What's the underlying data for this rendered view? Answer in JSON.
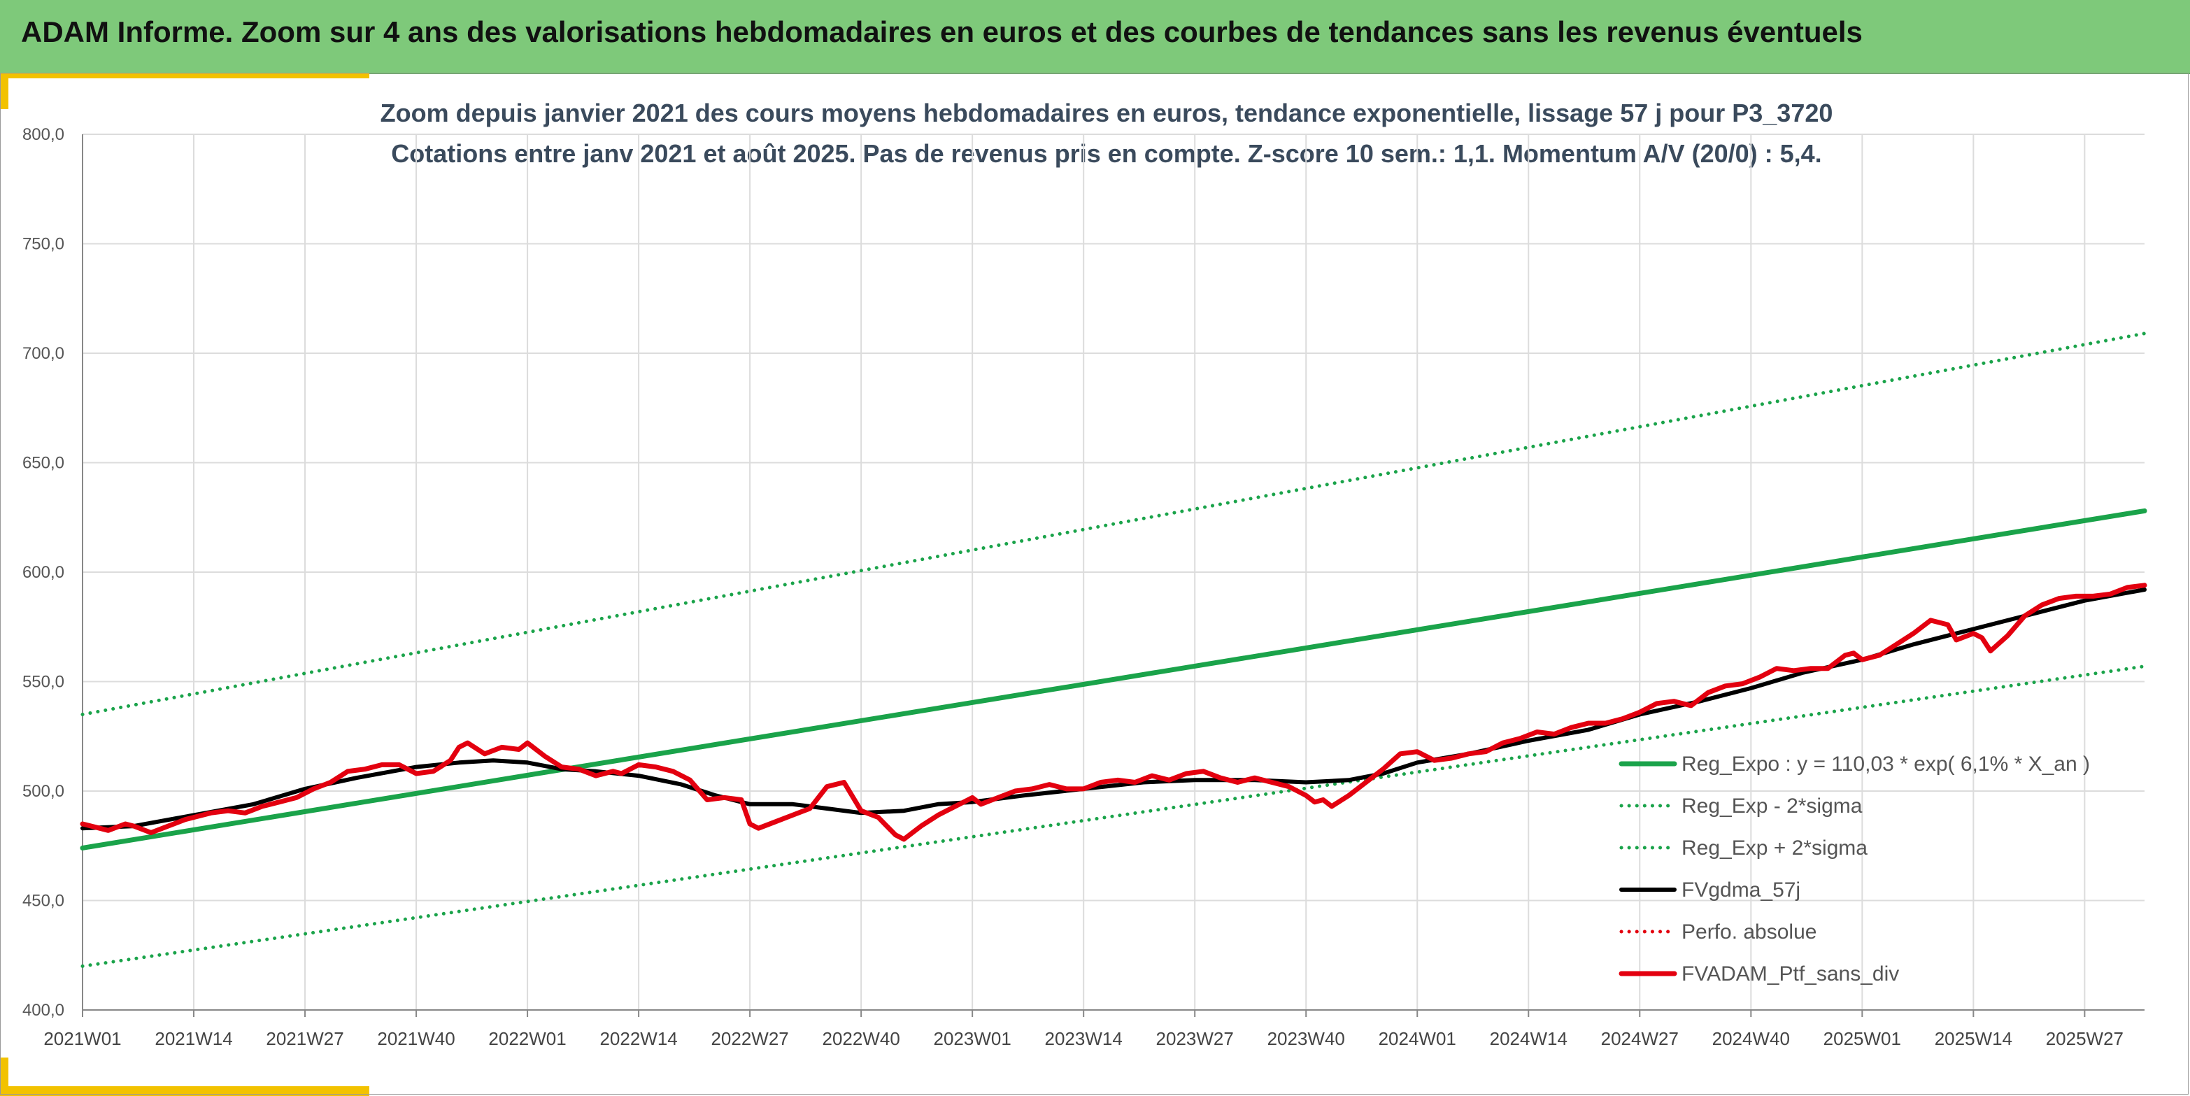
{
  "header": {
    "title": "ADAM Informe. Zoom sur 4 ans des valorisations hebdomadaires en euros et des courbes de tendances sans les revenus éventuels"
  },
  "colors": {
    "header_bg": "#7ec97a",
    "accent": "#f2c200",
    "trend_green": "#1aa34a",
    "smooth_black": "#000000",
    "price_red": "#e3000f"
  },
  "chart_data": {
    "type": "line",
    "title_line1": "Zoom depuis janvier 2021 des cours moyens hebdomadaires en euros, tendance exponentielle, lissage 57 j pour P3_3720",
    "title_line2": "Cotations entre janv 2021 et août 2025. Pas de revenus pris en compte. Z-score 10 sem.: 1,1. Momentum A/V (20/0) : 5,4.",
    "ylim": [
      400,
      800
    ],
    "yticks": [
      "400,0",
      "450,0",
      "500,0",
      "550,0",
      "600,0",
      "650,0",
      "700,0",
      "750,0",
      "800,0"
    ],
    "xlim": [
      0,
      241
    ],
    "xticks": [
      {
        "label": "2021W01",
        "x": 0
      },
      {
        "label": "2021W14",
        "x": 13
      },
      {
        "label": "2021W27",
        "x": 26
      },
      {
        "label": "2021W40",
        "x": 39
      },
      {
        "label": "2022W01",
        "x": 52
      },
      {
        "label": "2022W14",
        "x": 65
      },
      {
        "label": "2022W27",
        "x": 78
      },
      {
        "label": "2022W40",
        "x": 91
      },
      {
        "label": "2023W01",
        "x": 104
      },
      {
        "label": "2023W14",
        "x": 117
      },
      {
        "label": "2023W27",
        "x": 130
      },
      {
        "label": "2023W40",
        "x": 143
      },
      {
        "label": "2024W01",
        "x": 156
      },
      {
        "label": "2024W14",
        "x": 169
      },
      {
        "label": "2024W27",
        "x": 182
      },
      {
        "label": "2024W40",
        "x": 195
      },
      {
        "label": "2025W01",
        "x": 208
      },
      {
        "label": "2025W14",
        "x": 221
      },
      {
        "label": "2025W27",
        "x": 234
      }
    ],
    "grid": true,
    "legend_position": "bottom-right",
    "series": [
      {
        "name": "Reg_Expo : y = 110,03 * exp( 6,1% *  X_an )",
        "style": "solid",
        "color": "#1aa34a",
        "width": 7,
        "points": [
          [
            0,
            474
          ],
          [
            241,
            628
          ]
        ]
      },
      {
        "name": "Reg_Exp - 2*sigma",
        "style": "dotted",
        "color": "#1aa34a",
        "width": 5,
        "points": [
          [
            0,
            420
          ],
          [
            241,
            557
          ]
        ]
      },
      {
        "name": "Reg_Exp + 2*sigma",
        "style": "dotted",
        "color": "#1aa34a",
        "width": 5,
        "points": [
          [
            0,
            535
          ],
          [
            241,
            709
          ]
        ]
      },
      {
        "name": "FVgdma_57j",
        "style": "solid",
        "color": "#000000",
        "width": 6,
        "points": [
          [
            0,
            483
          ],
          [
            6,
            484
          ],
          [
            13,
            489
          ],
          [
            20,
            494
          ],
          [
            26,
            501
          ],
          [
            32,
            506
          ],
          [
            39,
            511
          ],
          [
            44,
            513
          ],
          [
            48,
            514
          ],
          [
            52,
            513
          ],
          [
            56,
            510
          ],
          [
            60,
            509
          ],
          [
            65,
            507
          ],
          [
            70,
            503
          ],
          [
            74,
            498
          ],
          [
            78,
            494
          ],
          [
            83,
            494
          ],
          [
            87,
            492
          ],
          [
            91,
            490
          ],
          [
            96,
            491
          ],
          [
            100,
            494
          ],
          [
            104,
            495
          ],
          [
            110,
            498
          ],
          [
            117,
            501
          ],
          [
            124,
            504
          ],
          [
            130,
            505
          ],
          [
            137,
            505
          ],
          [
            143,
            504
          ],
          [
            148,
            505
          ],
          [
            152,
            508
          ],
          [
            156,
            513
          ],
          [
            162,
            517
          ],
          [
            169,
            523
          ],
          [
            176,
            528
          ],
          [
            182,
            535
          ],
          [
            189,
            541
          ],
          [
            195,
            547
          ],
          [
            201,
            554
          ],
          [
            208,
            560
          ],
          [
            214,
            567
          ],
          [
            221,
            574
          ],
          [
            227,
            580
          ],
          [
            234,
            587
          ],
          [
            241,
            592
          ]
        ]
      },
      {
        "name": "Perfo. absolue",
        "style": "dotted",
        "color": "#e3000f",
        "width": 5,
        "points": []
      },
      {
        "name": "FVADAM_Ptf_sans_div",
        "style": "solid",
        "color": "#e3000f",
        "width": 7,
        "points": [
          [
            0,
            485
          ],
          [
            2,
            483
          ],
          [
            3,
            482
          ],
          [
            5,
            485
          ],
          [
            6,
            484
          ],
          [
            8,
            481
          ],
          [
            10,
            484
          ],
          [
            12,
            487
          ],
          [
            13,
            488
          ],
          [
            15,
            490
          ],
          [
            17,
            491
          ],
          [
            19,
            490
          ],
          [
            21,
            493
          ],
          [
            23,
            495
          ],
          [
            25,
            497
          ],
          [
            27,
            501
          ],
          [
            29,
            504
          ],
          [
            31,
            509
          ],
          [
            33,
            510
          ],
          [
            35,
            512
          ],
          [
            37,
            512
          ],
          [
            39,
            508
          ],
          [
            41,
            509
          ],
          [
            43,
            514
          ],
          [
            44,
            520
          ],
          [
            45,
            522
          ],
          [
            47,
            517
          ],
          [
            49,
            520
          ],
          [
            51,
            519
          ],
          [
            52,
            522
          ],
          [
            54,
            516
          ],
          [
            56,
            511
          ],
          [
            58,
            510
          ],
          [
            60,
            507
          ],
          [
            62,
            509
          ],
          [
            63,
            508
          ],
          [
            65,
            512
          ],
          [
            67,
            511
          ],
          [
            69,
            509
          ],
          [
            71,
            505
          ],
          [
            73,
            496
          ],
          [
            75,
            497
          ],
          [
            77,
            496
          ],
          [
            78,
            485
          ],
          [
            79,
            483
          ],
          [
            81,
            486
          ],
          [
            83,
            489
          ],
          [
            85,
            492
          ],
          [
            87,
            502
          ],
          [
            89,
            504
          ],
          [
            91,
            491
          ],
          [
            93,
            488
          ],
          [
            95,
            480
          ],
          [
            96,
            478
          ],
          [
            98,
            484
          ],
          [
            100,
            489
          ],
          [
            102,
            493
          ],
          [
            104,
            497
          ],
          [
            105,
            494
          ],
          [
            107,
            497
          ],
          [
            109,
            500
          ],
          [
            111,
            501
          ],
          [
            113,
            503
          ],
          [
            115,
            501
          ],
          [
            117,
            501
          ],
          [
            119,
            504
          ],
          [
            121,
            505
          ],
          [
            123,
            504
          ],
          [
            125,
            507
          ],
          [
            127,
            505
          ],
          [
            129,
            508
          ],
          [
            131,
            509
          ],
          [
            133,
            506
          ],
          [
            135,
            504
          ],
          [
            137,
            506
          ],
          [
            139,
            504
          ],
          [
            141,
            502
          ],
          [
            143,
            498
          ],
          [
            144,
            495
          ],
          [
            145,
            496
          ],
          [
            146,
            493
          ],
          [
            148,
            498
          ],
          [
            150,
            504
          ],
          [
            152,
            510
          ],
          [
            154,
            517
          ],
          [
            156,
            518
          ],
          [
            158,
            514
          ],
          [
            160,
            515
          ],
          [
            162,
            517
          ],
          [
            164,
            518
          ],
          [
            166,
            522
          ],
          [
            168,
            524
          ],
          [
            170,
            527
          ],
          [
            172,
            526
          ],
          [
            174,
            529
          ],
          [
            176,
            531
          ],
          [
            178,
            531
          ],
          [
            180,
            533
          ],
          [
            182,
            536
          ],
          [
            184,
            540
          ],
          [
            186,
            541
          ],
          [
            188,
            539
          ],
          [
            190,
            545
          ],
          [
            192,
            548
          ],
          [
            194,
            549
          ],
          [
            196,
            552
          ],
          [
            198,
            556
          ],
          [
            200,
            555
          ],
          [
            202,
            556
          ],
          [
            204,
            556
          ],
          [
            206,
            562
          ],
          [
            207,
            563
          ],
          [
            208,
            560
          ],
          [
            210,
            562
          ],
          [
            212,
            567
          ],
          [
            214,
            572
          ],
          [
            216,
            578
          ],
          [
            218,
            576
          ],
          [
            219,
            569
          ],
          [
            221,
            572
          ],
          [
            222,
            570
          ],
          [
            223,
            564
          ],
          [
            225,
            571
          ],
          [
            227,
            580
          ],
          [
            229,
            585
          ],
          [
            231,
            588
          ],
          [
            233,
            589
          ],
          [
            235,
            589
          ],
          [
            237,
            590
          ],
          [
            239,
            593
          ],
          [
            241,
            594
          ]
        ]
      }
    ]
  }
}
